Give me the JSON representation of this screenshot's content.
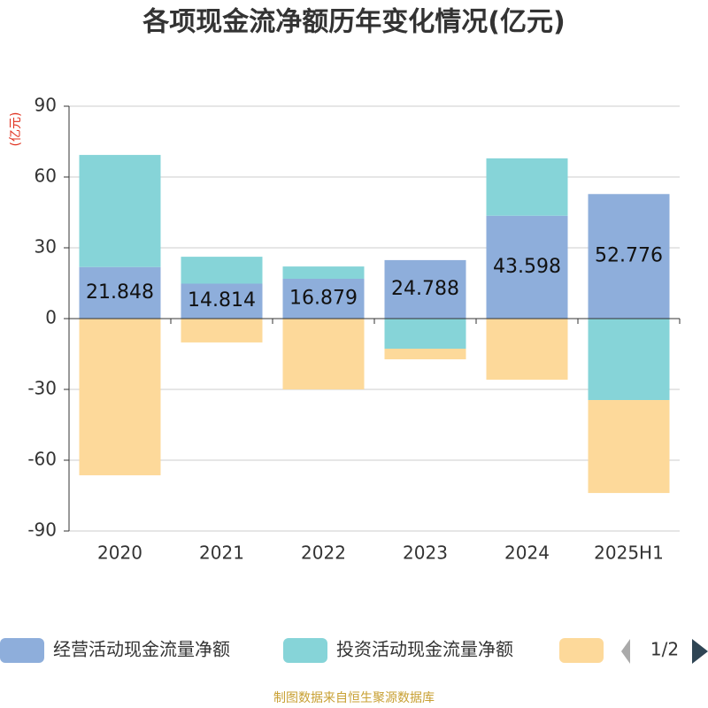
{
  "chart_data": {
    "type": "bar",
    "stacked": true,
    "title": "各项现金流净额历年变化情况(亿元)",
    "y_label": "(亿元)",
    "categories": [
      "2020",
      "2021",
      "2022",
      "2023",
      "2024",
      "2025H1"
    ],
    "series": [
      {
        "name": "经营活动现金流量净额",
        "color": "#8eaedb",
        "values": [
          21.848,
          14.814,
          16.879,
          24.788,
          43.598,
          52.776
        ],
        "show_labels": true
      },
      {
        "name": "投资活动现金流量净额",
        "color": "#86d4d8",
        "values": [
          47.5,
          11.4,
          5.2,
          -12.75,
          24.3,
          -34.5
        ]
      },
      {
        "color": "#fdd99a",
        "values": [
          -66.4,
          -10.1,
          -30,
          -4.5,
          -25.9,
          -39.4
        ]
      }
    ],
    "ylim": [
      -90,
      90
    ],
    "yticks": [
      -90,
      -60,
      -30,
      0,
      30,
      60,
      90
    ],
    "grid": true,
    "legend_page": "1/2",
    "source": "制图数据来自恒生聚源数据库"
  }
}
